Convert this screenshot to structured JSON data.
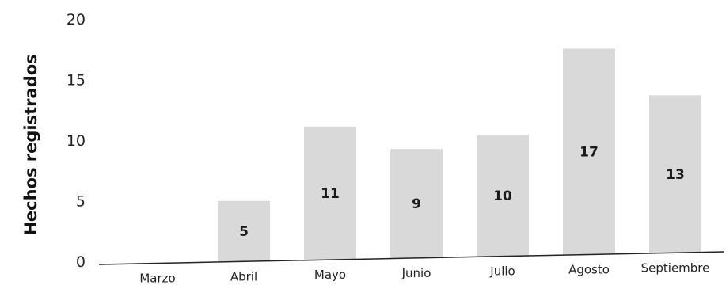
{
  "chart_data": {
    "type": "bar",
    "title": "",
    "xlabel": "",
    "ylabel": "Hechos registrados",
    "categories": [
      "Marzo",
      "Abril",
      "Mayo",
      "Junio",
      "Julio",
      "Agosto",
      "Septiembre"
    ],
    "values": [
      0,
      5,
      11,
      9,
      10,
      17,
      13
    ],
    "value_labels": [
      "",
      "5",
      "11",
      "9",
      "10",
      "17",
      "13"
    ],
    "ylim": [
      0,
      20
    ],
    "yticks": [
      "0",
      "5",
      "10",
      "15",
      "20"
    ],
    "grid": false,
    "legend": "none",
    "bar_color": "#d9d9d9",
    "axis_color": "#222222"
  }
}
